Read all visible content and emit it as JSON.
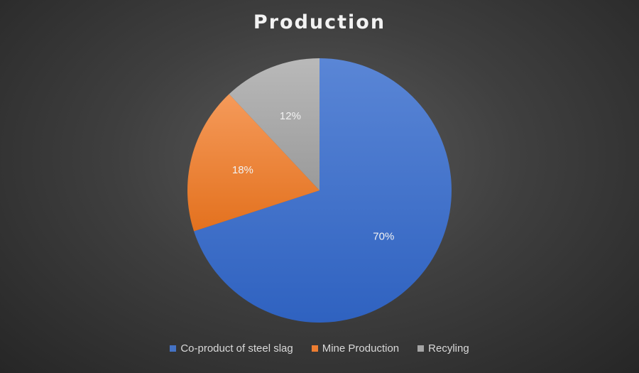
{
  "chart_data": {
    "type": "pie",
    "title": "Production",
    "slices": [
      {
        "name": "Co-product of steel slag",
        "value": 70,
        "label": "70%",
        "color": "#4472c4"
      },
      {
        "name": "Mine Production",
        "value": 18,
        "label": "18%",
        "color": "#ed7d31"
      },
      {
        "name": "Recyling",
        "value": 12,
        "label": "12%",
        "color": "#a5a5a5"
      }
    ],
    "legend_position": "bottom"
  }
}
